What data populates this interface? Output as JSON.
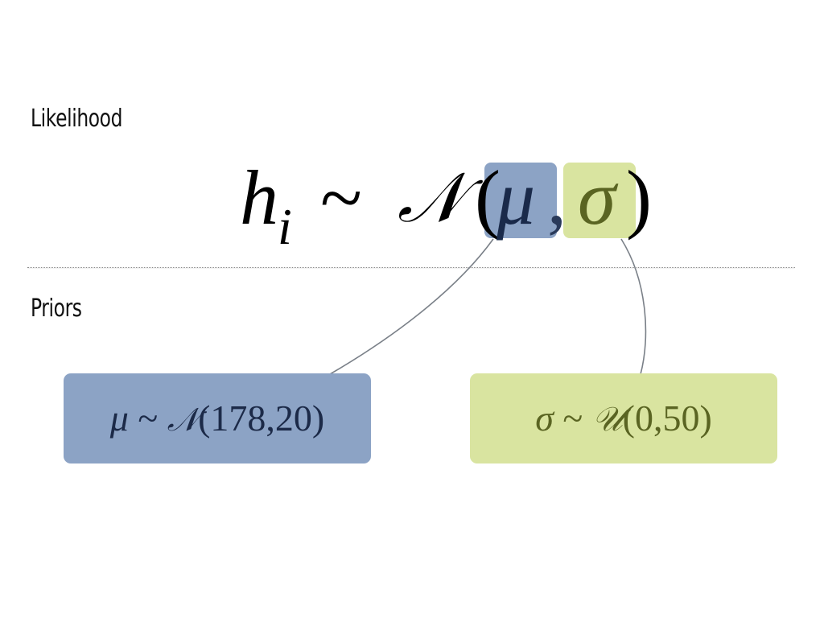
{
  "sections": {
    "likelihood_label": "Likelihood",
    "priors_label": "Priors"
  },
  "likelihood_equation": {
    "variable": "h",
    "subscript": "i",
    "tilde": "~",
    "distribution": "𝒩",
    "open_paren": "(",
    "param_mu": "μ",
    "comma": ",",
    "param_sigma": "σ",
    "close_paren": ")"
  },
  "priors": {
    "mu": {
      "symbol": "μ",
      "tilde": "~",
      "distribution": "𝒩",
      "args": "(178,20)",
      "color": "#8ca3c5"
    },
    "sigma": {
      "symbol": "σ",
      "tilde": "~",
      "distribution": "𝒰",
      "args": "(0,50)",
      "color": "#d9e4a0"
    }
  },
  "connector_color": "#7a8088"
}
